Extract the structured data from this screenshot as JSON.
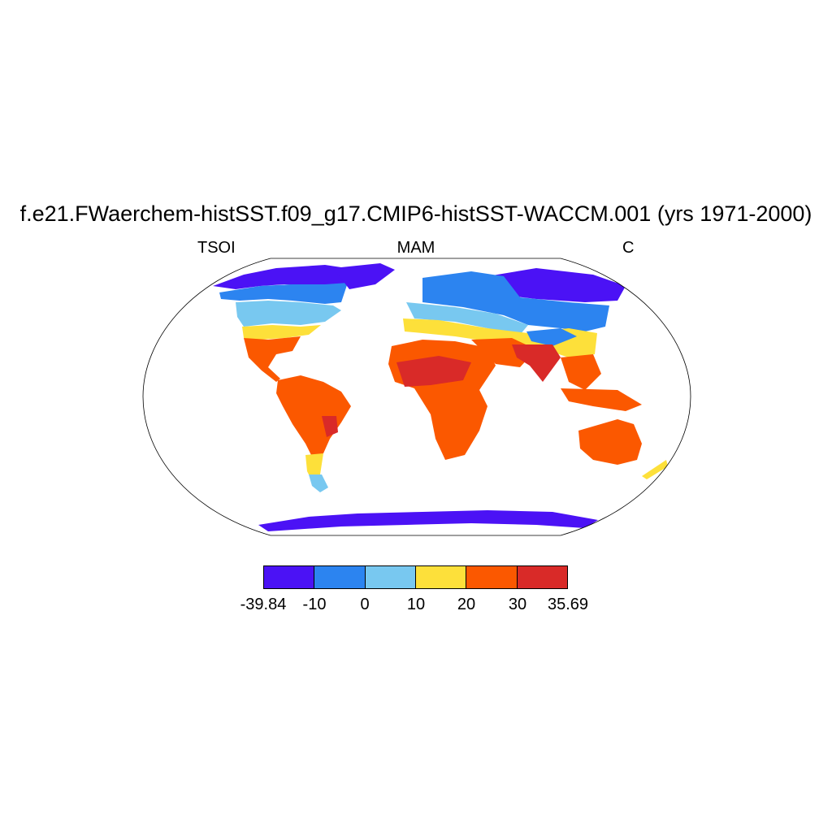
{
  "title": "f.e21.FWaerchem-histSST.f09_g17.CMIP6-histSST-WACCM.001 (yrs 1971-2000)",
  "left_label": "TSOI",
  "center_label": "MAM",
  "right_label": "C",
  "colorbar": {
    "labels": [
      "-39.84",
      "-10",
      "0",
      "10",
      "20",
      "30",
      "35.69"
    ],
    "colors": [
      "#4b12f5",
      "#2c84f0",
      "#78c8f0",
      "#fde03a",
      "#fb5800",
      "#d92a28"
    ]
  },
  "chart_data": {
    "type": "heatmap",
    "variable": "TSOI",
    "season": "MAM",
    "units": "C",
    "levels": [
      -39.84,
      -10,
      0,
      10,
      20,
      30,
      35.69
    ]
  }
}
